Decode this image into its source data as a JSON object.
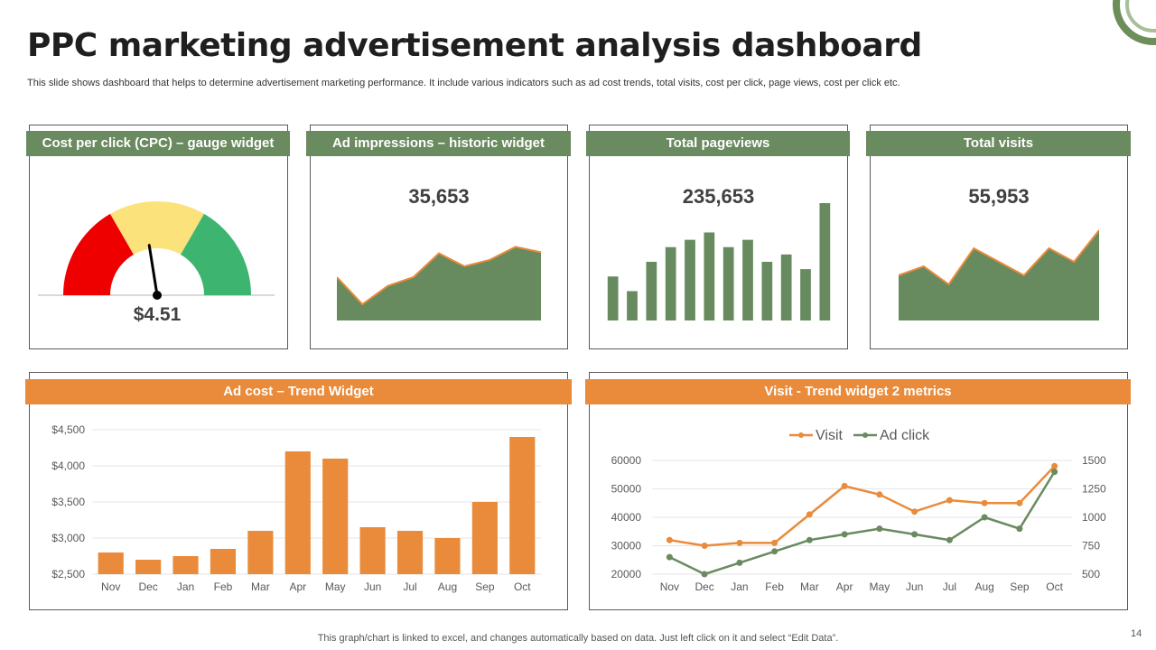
{
  "title": "PPC marketing advertisement analysis dashboard",
  "subtitle": "This slide shows dashboard that helps to determine advertisement marketing performance. It include various indicators such as ad cost trends, total visits, cost per click, page views, cost per click etc.",
  "footer": "This graph/chart is linked to excel,  and changes automatically based on data. Just left click on it and select “Edit Data”.",
  "page_number": "14",
  "colors": {
    "green": "#6a8a5f",
    "orange": "#e98b3a",
    "area_fill": "#678a5e",
    "gauge_red": "#ee0000",
    "gauge_yellow": "#fbe27a",
    "gauge_green": "#3db571"
  },
  "widgets": {
    "cpc": {
      "header": "Cost per click (CPC) – gauge widget",
      "value": "$4.51",
      "needle_fraction": 0.45
    },
    "impressions": {
      "header": "Ad impressions – historic widget",
      "value": "35,653"
    },
    "pageviews": {
      "header": "Total pageviews",
      "value": "235,653"
    },
    "visits": {
      "header": "Total visits",
      "value": "55,953"
    },
    "adcost": {
      "header": "Ad cost – Trend Widget"
    },
    "visit_trend": {
      "header": "Visit - Trend widget 2 metrics"
    }
  },
  "chart_data": [
    {
      "id": "impressions",
      "type": "area",
      "values": [
        40,
        15,
        32,
        40,
        62,
        50,
        56,
        68,
        63
      ],
      "ylim": [
        0,
        100
      ]
    },
    {
      "id": "pageviews",
      "type": "bar",
      "values": [
        30,
        20,
        40,
        50,
        55,
        60,
        50,
        55,
        40,
        45,
        35,
        80
      ],
      "ylim": [
        0,
        80
      ]
    },
    {
      "id": "visits",
      "type": "area",
      "values": [
        50,
        60,
        40,
        80,
        65,
        50,
        80,
        65,
        100
      ],
      "ylim": [
        0,
        110
      ]
    },
    {
      "id": "adcost",
      "type": "bar",
      "categories": [
        "Nov",
        "Dec",
        "Jan",
        "Feb",
        "Mar",
        "Apr",
        "May",
        "Jun",
        "Jul",
        "Aug",
        "Sep",
        "Oct"
      ],
      "values": [
        2800,
        2700,
        2750,
        2850,
        3100,
        4200,
        4100,
        3150,
        3100,
        3000,
        3500,
        4400
      ],
      "ylim": [
        2500,
        4500
      ],
      "yticks": [
        "$4,500",
        "$4,000",
        "$3,500",
        "$3,000",
        "$2,500"
      ],
      "ytick_values": [
        4500,
        4000,
        3500,
        3000,
        2500
      ]
    },
    {
      "id": "visit_trend",
      "type": "line",
      "categories": [
        "Nov",
        "Dec",
        "Jan",
        "Feb",
        "Mar",
        "Apr",
        "May",
        "Jun",
        "Jul",
        "Aug",
        "Sep",
        "Oct"
      ],
      "legend": [
        "Visit",
        "Ad click"
      ],
      "series": [
        {
          "name": "Visit",
          "axis": "left",
          "values": [
            32000,
            30000,
            31000,
            31000,
            41000,
            51000,
            48000,
            42000,
            46000,
            45000,
            45000,
            58000
          ]
        },
        {
          "name": "Ad click",
          "axis": "right",
          "values": [
            650,
            500,
            600,
            700,
            800,
            850,
            900,
            850,
            800,
            1000,
            900,
            1400
          ]
        }
      ],
      "y_left": {
        "range": [
          20000,
          60000
        ],
        "ticks": [
          "60000",
          "50000",
          "40000",
          "30000",
          "20000"
        ],
        "tick_values": [
          60000,
          50000,
          40000,
          30000,
          20000
        ]
      },
      "y_right": {
        "range": [
          500,
          1500
        ],
        "ticks": [
          "1500",
          "1250",
          "1000",
          "750",
          "500"
        ],
        "tick_values": [
          1500,
          1250,
          1000,
          750,
          500
        ]
      }
    }
  ]
}
